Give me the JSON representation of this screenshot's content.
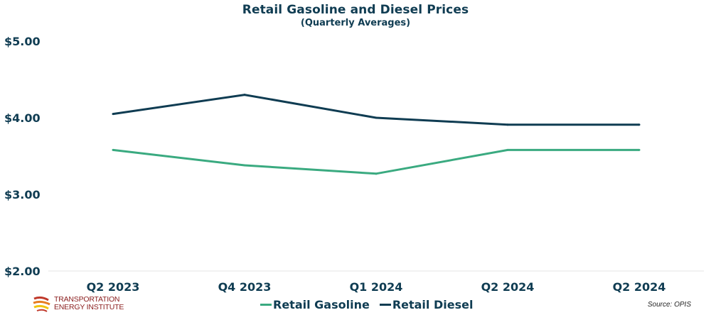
{
  "chart_data": {
    "type": "line",
    "title": "Retail Gasoline and Diesel Prices",
    "subtitle": "(Quarterly Averages)",
    "xlabel": "",
    "ylabel": "",
    "categories": [
      "Q2 2023",
      "Q4 2023",
      "Q1 2024",
      "Q2 2024",
      "Q2 2024"
    ],
    "ylim": [
      2.0,
      5.0
    ],
    "yticks": [
      2.0,
      3.0,
      4.0,
      5.0
    ],
    "ytick_labels": [
      "$2.00",
      "$3.00",
      "$4.00",
      "$5.00"
    ],
    "grid": false,
    "legend_position": "bottom-center",
    "series": [
      {
        "name": "Retail Gasoline",
        "color": "#3aaa80",
        "values": [
          3.58,
          3.38,
          3.27,
          3.58,
          3.58
        ]
      },
      {
        "name": "Retail Diesel",
        "color": "#0f3c52",
        "values": [
          4.05,
          4.3,
          4.0,
          3.91,
          3.91
        ]
      }
    ]
  },
  "legend": {
    "items": [
      {
        "label": "Retail Gasoline",
        "color": "#3aaa80"
      },
      {
        "label": "Retail Diesel",
        "color": "#0f3c52"
      }
    ]
  },
  "source": "Source: OPIS",
  "logo": {
    "line1": "TRANSPORTATION",
    "line2": "ENERGY INSTITUTE"
  }
}
